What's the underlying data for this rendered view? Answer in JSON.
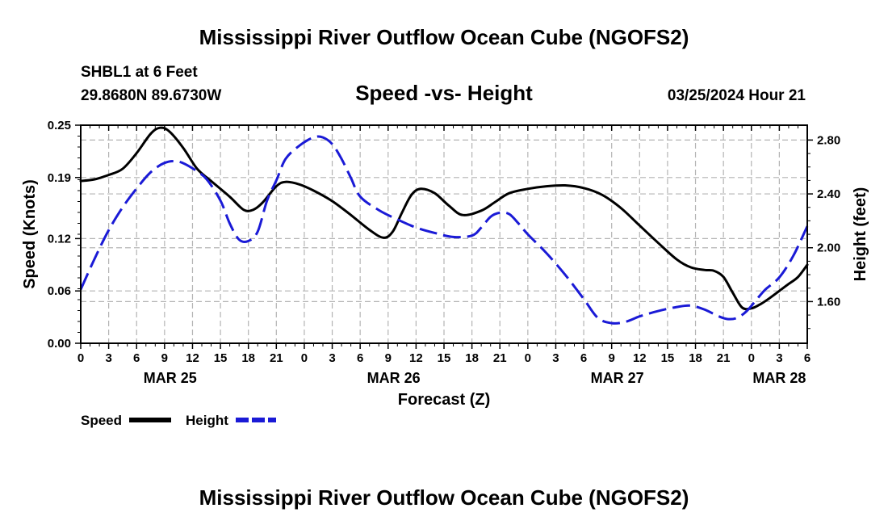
{
  "title": "Mississippi River Outflow Ocean Cube (NGOFS2)",
  "footer_title": "Mississippi River Outflow Ocean Cube (NGOFS2)",
  "station": "SHBL1 at 6 Feet",
  "location": "29.8680N  89.6730W",
  "plot_title": "Speed -vs- Height",
  "run_time": "03/25/2024 Hour 21",
  "chart_data": {
    "type": "line",
    "title": "Speed -vs- Height",
    "xlabel": "Forecast (Z)",
    "ylabel_left": "Speed (Knots)",
    "ylabel_right": "Height (feet)",
    "x_unit": "hours from MAR 25 00Z",
    "xlim": [
      0,
      78
    ],
    "ylim_left": [
      0,
      0.25
    ],
    "ylim_right": [
      1.2904,
      2.9104
    ],
    "grid": true,
    "x_tick_values": [
      0,
      3,
      6,
      9,
      12,
      15,
      18,
      21,
      24,
      27,
      30,
      33,
      36,
      39,
      42,
      45,
      48,
      51,
      54,
      57,
      60,
      63,
      66,
      69,
      72,
      75,
      78
    ],
    "x_tick_labels": [
      "0",
      "3",
      "6",
      "9",
      "12",
      "15",
      "18",
      "21",
      "0",
      "3",
      "6",
      "9",
      "12",
      "15",
      "18",
      "21",
      "0",
      "3",
      "6",
      "9",
      "12",
      "15",
      "18",
      "21",
      "0",
      "3",
      "6"
    ],
    "date_labels": [
      {
        "x": 9.6,
        "label": "MAR 25"
      },
      {
        "x": 33.6,
        "label": "MAR 26"
      },
      {
        "x": 57.6,
        "label": "MAR 27"
      },
      {
        "x": 75.0,
        "label": "MAR 28"
      }
    ],
    "y_left_ticks": [
      0.0,
      0.06,
      0.12,
      0.19,
      0.25
    ],
    "y_left_tick_labels": [
      "0.00",
      "0.06",
      "0.12",
      "0.19",
      "0.25"
    ],
    "y_right_ticks": [
      1.6,
      2.0,
      2.4,
      2.8
    ],
    "y_right_tick_labels": [
      "1.60",
      "2.00",
      "2.40",
      "2.80"
    ],
    "series": [
      {
        "name": "Speed",
        "axis": "left",
        "color": "#000000",
        "dash": "solid",
        "x": [
          0,
          1.5,
          3,
          4.5,
          6,
          7.5,
          8.5,
          9.5,
          11,
          12.5,
          14,
          16,
          17.5,
          18.5,
          19.5,
          21,
          22,
          23.5,
          25,
          27,
          29,
          31,
          32.5,
          33.5,
          34.5,
          35.5,
          36.5,
          38,
          39.5,
          41,
          43,
          44.5,
          46,
          48,
          50,
          52,
          54,
          56,
          58,
          60,
          62,
          64,
          65.5,
          67,
          68,
          69,
          70,
          71,
          72,
          73,
          74,
          75,
          76,
          77,
          78
        ],
        "values": [
          0.186,
          0.188,
          0.193,
          0.2,
          0.218,
          0.24,
          0.247,
          0.243,
          0.224,
          0.2,
          0.186,
          0.168,
          0.153,
          0.153,
          0.161,
          0.18,
          0.185,
          0.182,
          0.175,
          0.163,
          0.147,
          0.13,
          0.121,
          0.128,
          0.15,
          0.17,
          0.177,
          0.172,
          0.158,
          0.147,
          0.152,
          0.162,
          0.172,
          0.177,
          0.18,
          0.181,
          0.178,
          0.17,
          0.155,
          0.135,
          0.115,
          0.096,
          0.087,
          0.084,
          0.083,
          0.076,
          0.058,
          0.041,
          0.04,
          0.045,
          0.052,
          0.06,
          0.068,
          0.076,
          0.09
        ]
      },
      {
        "name": "Height",
        "axis": "right",
        "color": "#1a1ad6",
        "dash": "dashed",
        "x": [
          0,
          1.5,
          3,
          4.5,
          6,
          7.5,
          9,
          10.5,
          12,
          13.5,
          15,
          16,
          17,
          18,
          19,
          20,
          21,
          22,
          23.5,
          25,
          26,
          27,
          28,
          29,
          30,
          32,
          34,
          36,
          38,
          40,
          42,
          43,
          44,
          45,
          46,
          47,
          48,
          50,
          52,
          54,
          55.5,
          57,
          58.5,
          60,
          62,
          64,
          65.5,
          67,
          68.5,
          69.5,
          70.5,
          71.5,
          72.5,
          73.5,
          75,
          76.5,
          78
        ],
        "values": [
          1.69,
          1.92,
          2.13,
          2.3,
          2.44,
          2.56,
          2.63,
          2.64,
          2.59,
          2.51,
          2.35,
          2.18,
          2.06,
          2.05,
          2.12,
          2.35,
          2.5,
          2.66,
          2.76,
          2.82,
          2.82,
          2.77,
          2.66,
          2.52,
          2.38,
          2.28,
          2.21,
          2.15,
          2.11,
          2.08,
          2.09,
          2.15,
          2.23,
          2.26,
          2.25,
          2.18,
          2.1,
          1.96,
          1.8,
          1.62,
          1.48,
          1.44,
          1.45,
          1.49,
          1.53,
          1.56,
          1.57,
          1.54,
          1.49,
          1.47,
          1.48,
          1.53,
          1.61,
          1.69,
          1.78,
          1.94,
          2.16
        ]
      }
    ],
    "legend": [
      {
        "name": "Speed",
        "color": "#000000",
        "dash": "solid"
      },
      {
        "name": "Height",
        "color": "#1a1ad6",
        "dash": "dashed"
      }
    ],
    "legend_position": "bottom-left"
  }
}
